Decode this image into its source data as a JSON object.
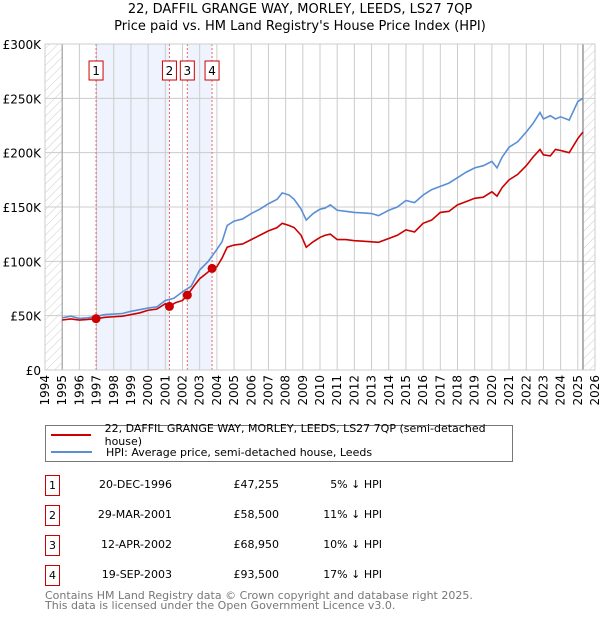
{
  "title_line1": "22, DAFFIL GRANGE WAY, MORLEY, LEEDS, LS27 7QP",
  "title_line2": "Price paid vs. HM Land Registry's House Price Index (HPI)",
  "chart_data": {
    "type": "line",
    "title": "22, DAFFIL GRANGE WAY, MORLEY, LEEDS, LS27 7QP - Price paid vs. HM Land Registry's House Price Index (HPI)",
    "xlim": [
      1994,
      2026
    ],
    "ylim": [
      0,
      300000
    ],
    "x_ticks": [
      "1994",
      "1995",
      "1996",
      "1997",
      "1998",
      "1999",
      "2000",
      "2001",
      "2002",
      "2003",
      "2004",
      "2005",
      "2006",
      "2007",
      "2008",
      "2009",
      "2010",
      "2011",
      "2012",
      "2013",
      "2014",
      "2015",
      "2016",
      "2017",
      "2018",
      "2019",
      "2020",
      "2021",
      "2022",
      "2023",
      "2024",
      "2025",
      "2026"
    ],
    "y_ticks": [
      {
        "v": 0,
        "label": "£0"
      },
      {
        "v": 50000,
        "label": "£50K"
      },
      {
        "v": 100000,
        "label": "£100K"
      },
      {
        "v": 150000,
        "label": "£150K"
      },
      {
        "v": 200000,
        "label": "£200K"
      },
      {
        "v": 250000,
        "label": "£250K"
      },
      {
        "v": 300000,
        "label": "£300K"
      }
    ],
    "grid": true,
    "data_range": [
      1995,
      2025.3
    ],
    "series": [
      {
        "name": "22, DAFFIL GRANGE WAY, MORLEY, LEEDS, LS27 7QP (semi-detached house)",
        "color": "#cc0000",
        "x": [
          1995,
          1995.5,
          1996,
          1996.5,
          1996.97,
          1997.5,
          1998,
          1998.5,
          1999,
          1999.5,
          2000,
          2000.5,
          2001,
          2001.24,
          2001.6,
          2002,
          2002.28,
          2002.7,
          2003,
          2003.4,
          2003.72,
          2004,
          2004.3,
          2004.6,
          2005,
          2005.5,
          2006,
          2006.5,
          2007,
          2007.5,
          2007.8,
          2008.2,
          2008.5,
          2008.9,
          2009.2,
          2009.6,
          2010,
          2010.3,
          2010.6,
          2011,
          2011.5,
          2012,
          2012.5,
          2013,
          2013.4,
          2014,
          2014.5,
          2015,
          2015.5,
          2016,
          2016.5,
          2017,
          2017.5,
          2018,
          2018.5,
          2019,
          2019.5,
          2020,
          2020.3,
          2020.6,
          2021,
          2021.5,
          2022,
          2022.4,
          2022.8,
          2023,
          2023.4,
          2023.7,
          2024,
          2024.5,
          2025,
          2025.3
        ],
        "y": [
          46000,
          47000,
          46000,
          46500,
          47255,
          48500,
          49000,
          49500,
          51000,
          52500,
          55000,
          56000,
          61000,
          58500,
          62000,
          64000,
          68950,
          78000,
          84000,
          89000,
          93500,
          95000,
          103000,
          113000,
          115000,
          116000,
          120000,
          124000,
          128000,
          131000,
          135000,
          133000,
          131000,
          124000,
          113000,
          118000,
          122000,
          124000,
          125000,
          120000,
          120000,
          119000,
          118500,
          118000,
          117500,
          121000,
          124000,
          129000,
          127000,
          135000,
          138000,
          145000,
          146000,
          152000,
          155000,
          158000,
          159000,
          164000,
          160000,
          168000,
          175000,
          180000,
          188000,
          196000,
          203000,
          198000,
          197000,
          203000,
          202000,
          200000,
          213000,
          219000
        ]
      },
      {
        "name": "HPI: Average price, semi-detached house, Leeds",
        "color": "#5b8fd4",
        "x": [
          1995,
          1995.5,
          1996,
          1996.5,
          1997,
          1997.5,
          1998,
          1998.5,
          1999,
          1999.5,
          2000,
          2000.5,
          2001,
          2001.5,
          2002,
          2002.5,
          2003,
          2003.5,
          2004,
          2004.3,
          2004.6,
          2005,
          2005.5,
          2006,
          2006.5,
          2007,
          2007.5,
          2007.8,
          2008.2,
          2008.5,
          2008.9,
          2009.2,
          2009.6,
          2010,
          2010.3,
          2010.6,
          2011,
          2011.5,
          2012,
          2012.5,
          2013,
          2013.4,
          2014,
          2014.5,
          2015,
          2015.5,
          2016,
          2016.5,
          2017,
          2017.5,
          2018,
          2018.5,
          2019,
          2019.5,
          2020,
          2020.3,
          2020.6,
          2021,
          2021.5,
          2022,
          2022.4,
          2022.8,
          2023,
          2023.4,
          2023.7,
          2024,
          2024.5,
          2025,
          2025.3
        ],
        "y": [
          48000,
          49500,
          47500,
          48000,
          49500,
          51000,
          51500,
          52000,
          54000,
          55500,
          57000,
          58000,
          64000,
          66000,
          72000,
          77000,
          92000,
          100000,
          111000,
          118000,
          133000,
          137000,
          139000,
          144000,
          148000,
          153000,
          157000,
          163000,
          161000,
          157000,
          148000,
          138000,
          144000,
          148000,
          149000,
          152000,
          147000,
          146000,
          145000,
          144500,
          144000,
          142000,
          147000,
          150000,
          156000,
          154000,
          161000,
          166000,
          169000,
          172000,
          177000,
          182000,
          186000,
          188000,
          192000,
          186000,
          196000,
          205000,
          210000,
          219000,
          227000,
          237000,
          231000,
          234000,
          231000,
          233000,
          230000,
          247000,
          250000
        ]
      }
    ],
    "transactions": [
      {
        "n": "1",
        "x": 1996.97,
        "price": 47255
      },
      {
        "n": "2",
        "x": 2001.24,
        "price": 58500
      },
      {
        "n": "3",
        "x": 2002.28,
        "price": 68950
      },
      {
        "n": "4",
        "x": 2003.72,
        "price": 93500
      }
    ]
  },
  "legend": {
    "property": "22, DAFFIL GRANGE WAY, MORLEY, LEEDS, LS27 7QP (semi-detached house)",
    "hpi": "HPI: Average price, semi-detached house, Leeds"
  },
  "sales": [
    {
      "n": "1",
      "date": "20-DEC-1996",
      "price": "£47,255",
      "hpi": "5% ↓ HPI"
    },
    {
      "n": "2",
      "date": "29-MAR-2001",
      "price": "£58,500",
      "hpi": "11% ↓ HPI"
    },
    {
      "n": "3",
      "date": "12-APR-2002",
      "price": "£68,950",
      "hpi": "10% ↓ HPI"
    },
    {
      "n": "4",
      "date": "19-SEP-2003",
      "price": "£93,500",
      "hpi": "17% ↓ HPI"
    }
  ],
  "footer": {
    "line1": "Contains HM Land Registry data © Crown copyright and database right 2025.",
    "line2": "This data is licensed under the Open Government Licence v3.0."
  }
}
